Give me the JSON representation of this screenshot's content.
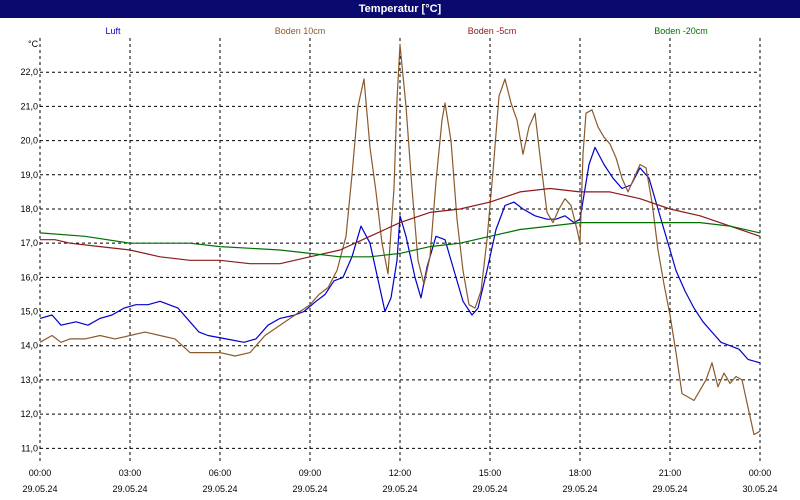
{
  "chart_data": {
    "type": "line",
    "title": "Temperatur [°C]",
    "ylabel": "°C",
    "ylim": [
      10.6,
      23.0
    ],
    "xlim_hours": [
      0,
      24
    ],
    "grid": true,
    "grid_style": "dashed",
    "legend_position": "top",
    "yticks": [
      "22,0",
      "21,0",
      "20,0",
      "19,0",
      "18,0",
      "17,0",
      "16,0",
      "15,0",
      "14,0",
      "13,0",
      "12,0",
      "11,0"
    ],
    "xticks": [
      {
        "time": "00:00",
        "date": "29.05.24"
      },
      {
        "time": "03:00",
        "date": "29.05.24"
      },
      {
        "time": "06:00",
        "date": "29.05.24"
      },
      {
        "time": "09:00",
        "date": "29.05.24"
      },
      {
        "time": "12:00",
        "date": "29.05.24"
      },
      {
        "time": "15:00",
        "date": "29.05.24"
      },
      {
        "time": "18:00",
        "date": "29.05.24"
      },
      {
        "time": "21:00",
        "date": "29.05.24"
      },
      {
        "time": "00:00",
        "date": "30.05.24"
      }
    ],
    "series": [
      {
        "name": "Luft",
        "color": "#0000cc",
        "points": [
          [
            0,
            14.8
          ],
          [
            0.4,
            14.9
          ],
          [
            0.7,
            14.6
          ],
          [
            1.2,
            14.7
          ],
          [
            1.6,
            14.6
          ],
          [
            2.0,
            14.8
          ],
          [
            2.4,
            14.9
          ],
          [
            2.8,
            15.1
          ],
          [
            3.2,
            15.2
          ],
          [
            3.6,
            15.2
          ],
          [
            4.0,
            15.3
          ],
          [
            4.3,
            15.2
          ],
          [
            4.6,
            15.1
          ],
          [
            5.0,
            14.7
          ],
          [
            5.3,
            14.4
          ],
          [
            5.6,
            14.3
          ],
          [
            6.2,
            14.2
          ],
          [
            6.8,
            14.1
          ],
          [
            7.2,
            14.2
          ],
          [
            7.6,
            14.6
          ],
          [
            8.0,
            14.8
          ],
          [
            8.5,
            14.9
          ],
          [
            8.8,
            15.0
          ],
          [
            9.2,
            15.3
          ],
          [
            9.5,
            15.5
          ],
          [
            9.8,
            15.9
          ],
          [
            10.1,
            16.0
          ],
          [
            10.4,
            16.6
          ],
          [
            10.7,
            17.5
          ],
          [
            11.0,
            17.0
          ],
          [
            11.3,
            15.8
          ],
          [
            11.5,
            15.0
          ],
          [
            11.7,
            15.4
          ],
          [
            11.9,
            16.5
          ],
          [
            12.0,
            17.8
          ],
          [
            12.2,
            17.2
          ],
          [
            12.5,
            16.0
          ],
          [
            12.7,
            15.4
          ],
          [
            12.9,
            16.3
          ],
          [
            13.2,
            17.2
          ],
          [
            13.5,
            17.1
          ],
          [
            13.8,
            16.2
          ],
          [
            14.1,
            15.3
          ],
          [
            14.4,
            14.9
          ],
          [
            14.6,
            15.1
          ],
          [
            14.9,
            16.2
          ],
          [
            15.2,
            17.4
          ],
          [
            15.5,
            18.1
          ],
          [
            15.8,
            18.2
          ],
          [
            16.1,
            18.0
          ],
          [
            16.5,
            17.8
          ],
          [
            16.9,
            17.7
          ],
          [
            17.2,
            17.7
          ],
          [
            17.5,
            17.8
          ],
          [
            17.8,
            17.6
          ],
          [
            18.0,
            17.7
          ],
          [
            18.3,
            19.3
          ],
          [
            18.5,
            19.8
          ],
          [
            18.8,
            19.3
          ],
          [
            19.1,
            18.9
          ],
          [
            19.4,
            18.6
          ],
          [
            19.7,
            18.7
          ],
          [
            20.0,
            19.2
          ],
          [
            20.3,
            18.9
          ],
          [
            20.6,
            18.0
          ],
          [
            20.9,
            17.1
          ],
          [
            21.2,
            16.2
          ],
          [
            21.5,
            15.6
          ],
          [
            21.8,
            15.1
          ],
          [
            22.1,
            14.7
          ],
          [
            22.4,
            14.4
          ],
          [
            22.7,
            14.1
          ],
          [
            23.0,
            14.0
          ],
          [
            23.3,
            13.9
          ],
          [
            23.6,
            13.6
          ],
          [
            24.0,
            13.5
          ]
        ]
      },
      {
        "name": "Boden 10cm",
        "color": "#8b5a2b",
        "points": [
          [
            0,
            14.1
          ],
          [
            0.4,
            14.3
          ],
          [
            0.7,
            14.1
          ],
          [
            1.0,
            14.2
          ],
          [
            1.5,
            14.2
          ],
          [
            2.0,
            14.3
          ],
          [
            2.5,
            14.2
          ],
          [
            3.0,
            14.3
          ],
          [
            3.5,
            14.4
          ],
          [
            4.0,
            14.3
          ],
          [
            4.5,
            14.2
          ],
          [
            5.0,
            13.8
          ],
          [
            5.5,
            13.8
          ],
          [
            6.0,
            13.8
          ],
          [
            6.5,
            13.7
          ],
          [
            7.0,
            13.8
          ],
          [
            7.5,
            14.3
          ],
          [
            8.0,
            14.6
          ],
          [
            8.5,
            14.9
          ],
          [
            9.0,
            15.2
          ],
          [
            9.3,
            15.5
          ],
          [
            9.6,
            15.7
          ],
          [
            9.9,
            16.2
          ],
          [
            10.2,
            17.2
          ],
          [
            10.4,
            19.0
          ],
          [
            10.6,
            21.0
          ],
          [
            10.8,
            21.8
          ],
          [
            11.0,
            19.8
          ],
          [
            11.2,
            18.5
          ],
          [
            11.4,
            17.0
          ],
          [
            11.6,
            16.1
          ],
          [
            11.8,
            18.6
          ],
          [
            11.9,
            21.2
          ],
          [
            12.0,
            22.8
          ],
          [
            12.2,
            21.0
          ],
          [
            12.4,
            18.6
          ],
          [
            12.6,
            16.5
          ],
          [
            12.8,
            15.8
          ],
          [
            13.0,
            16.6
          ],
          [
            13.2,
            18.8
          ],
          [
            13.4,
            20.6
          ],
          [
            13.5,
            21.1
          ],
          [
            13.7,
            20.0
          ],
          [
            13.9,
            17.7
          ],
          [
            14.1,
            16.2
          ],
          [
            14.3,
            15.2
          ],
          [
            14.5,
            15.1
          ],
          [
            14.7,
            15.6
          ],
          [
            14.9,
            17.1
          ],
          [
            15.1,
            19.1
          ],
          [
            15.3,
            21.3
          ],
          [
            15.5,
            21.8
          ],
          [
            15.7,
            21.1
          ],
          [
            15.9,
            20.6
          ],
          [
            16.1,
            19.6
          ],
          [
            16.3,
            20.4
          ],
          [
            16.5,
            20.8
          ],
          [
            16.7,
            19.3
          ],
          [
            16.9,
            17.9
          ],
          [
            17.1,
            17.6
          ],
          [
            17.3,
            18.0
          ],
          [
            17.5,
            18.3
          ],
          [
            17.7,
            18.1
          ],
          [
            17.9,
            17.4
          ],
          [
            18.0,
            17.0
          ],
          [
            18.1,
            19.6
          ],
          [
            18.2,
            20.8
          ],
          [
            18.4,
            20.9
          ],
          [
            18.6,
            20.4
          ],
          [
            18.8,
            20.1
          ],
          [
            19.0,
            19.9
          ],
          [
            19.2,
            19.5
          ],
          [
            19.4,
            18.9
          ],
          [
            19.6,
            18.5
          ],
          [
            19.8,
            18.9
          ],
          [
            20.0,
            19.3
          ],
          [
            20.2,
            19.2
          ],
          [
            20.4,
            18.2
          ],
          [
            20.6,
            16.8
          ],
          [
            20.8,
            15.8
          ],
          [
            21.0,
            14.9
          ],
          [
            21.2,
            13.8
          ],
          [
            21.4,
            12.6
          ],
          [
            21.6,
            12.5
          ],
          [
            21.8,
            12.4
          ],
          [
            22.0,
            12.7
          ],
          [
            22.2,
            13.0
          ],
          [
            22.4,
            13.5
          ],
          [
            22.6,
            12.8
          ],
          [
            22.8,
            13.2
          ],
          [
            23.0,
            12.9
          ],
          [
            23.2,
            13.1
          ],
          [
            23.4,
            13.0
          ],
          [
            23.6,
            12.2
          ],
          [
            23.8,
            11.4
          ],
          [
            24.0,
            11.5
          ]
        ]
      },
      {
        "name": "Boden -5cm",
        "color": "#8b1a1a",
        "points": [
          [
            0,
            17.1
          ],
          [
            0.5,
            17.1
          ],
          [
            1.0,
            17.0
          ],
          [
            2.0,
            16.9
          ],
          [
            3.0,
            16.8
          ],
          [
            4.0,
            16.6
          ],
          [
            5.0,
            16.5
          ],
          [
            6.0,
            16.5
          ],
          [
            7.0,
            16.4
          ],
          [
            8.0,
            16.4
          ],
          [
            9.0,
            16.6
          ],
          [
            10.0,
            16.8
          ],
          [
            11.0,
            17.2
          ],
          [
            11.5,
            17.4
          ],
          [
            12.0,
            17.6
          ],
          [
            13.0,
            17.9
          ],
          [
            14.0,
            18.0
          ],
          [
            15.0,
            18.2
          ],
          [
            16.0,
            18.5
          ],
          [
            17.0,
            18.6
          ],
          [
            18.0,
            18.5
          ],
          [
            19.0,
            18.5
          ],
          [
            19.5,
            18.4
          ],
          [
            20.0,
            18.3
          ],
          [
            21.0,
            18.0
          ],
          [
            22.0,
            17.8
          ],
          [
            23.0,
            17.5
          ],
          [
            24.0,
            17.2
          ]
        ]
      },
      {
        "name": "Boden -20cm",
        "color": "#007000",
        "points": [
          [
            0,
            17.3
          ],
          [
            1.5,
            17.2
          ],
          [
            3.0,
            17.0
          ],
          [
            5.0,
            17.0
          ],
          [
            6.0,
            16.9
          ],
          [
            8.0,
            16.8
          ],
          [
            9.0,
            16.7
          ],
          [
            10.0,
            16.6
          ],
          [
            11.0,
            16.6
          ],
          [
            12.0,
            16.7
          ],
          [
            13.0,
            16.9
          ],
          [
            14.0,
            17.0
          ],
          [
            15.0,
            17.2
          ],
          [
            16.0,
            17.4
          ],
          [
            17.0,
            17.5
          ],
          [
            18.0,
            17.6
          ],
          [
            19.0,
            17.6
          ],
          [
            20.0,
            17.6
          ],
          [
            21.0,
            17.6
          ],
          [
            22.0,
            17.6
          ],
          [
            23.0,
            17.5
          ],
          [
            24.0,
            17.3
          ]
        ]
      }
    ]
  }
}
